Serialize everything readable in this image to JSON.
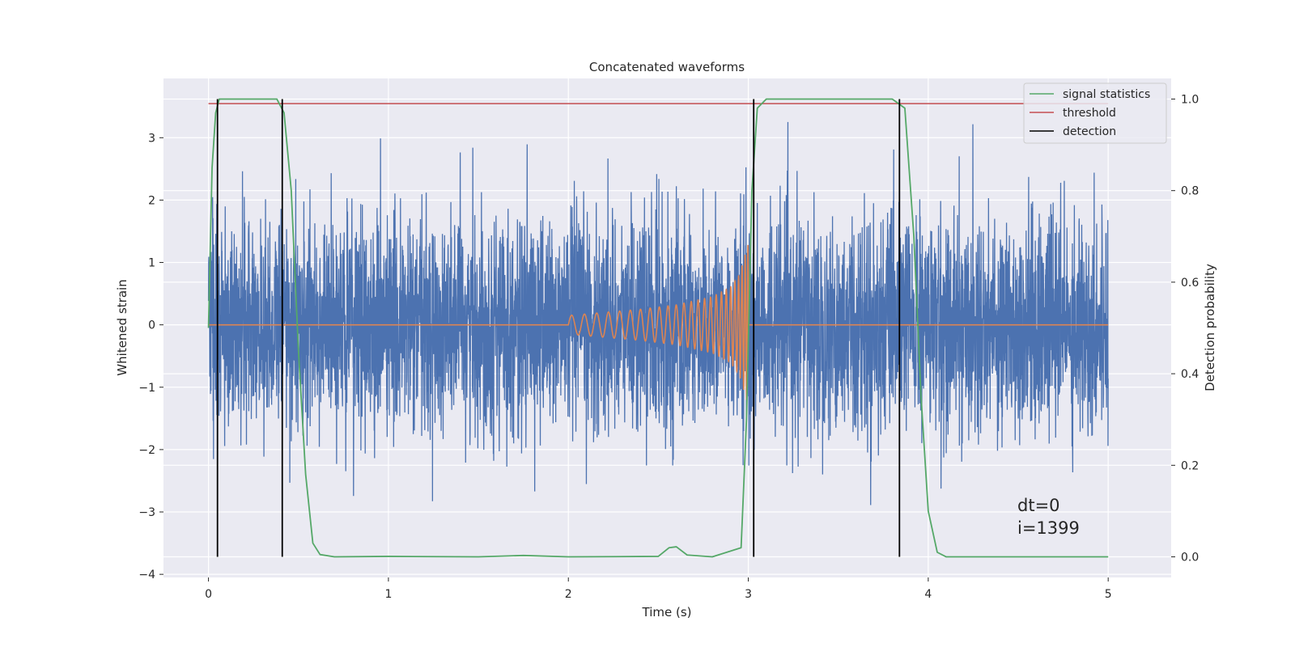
{
  "chart_data": {
    "type": "line",
    "title": "Concatenated waveforms",
    "xlabel": "Time (s)",
    "ylabel": "Whitened strain",
    "ylabel_right": "Detection probability",
    "xlim": [
      -0.25,
      5.35
    ],
    "ylim": [
      -4.05,
      3.95
    ],
    "ylim_right": [
      -0.045,
      1.045
    ],
    "x_ticks": [
      0,
      1,
      2,
      3,
      4,
      5
    ],
    "y_ticks": [
      -4,
      -3,
      -2,
      -1,
      0,
      1,
      2,
      3
    ],
    "y_ticks_right": [
      0.0,
      0.2,
      0.4,
      0.6,
      0.8,
      1.0
    ],
    "x_tick_labels": [
      "0",
      "1",
      "2",
      "3",
      "4",
      "5"
    ],
    "y_tick_labels": [
      "−4",
      "−3",
      "−2",
      "−1",
      "0",
      "1",
      "2",
      "3"
    ],
    "y_tick_labels_right": [
      "0.0",
      "0.2",
      "0.4",
      "0.6",
      "0.8",
      "1.0"
    ],
    "grid": true,
    "legend_position": "top-right",
    "colors": {
      "background": "#eaeaf2",
      "strain": "#4c72b0",
      "waveform": "#dd8452",
      "signal_statistics": "#55a868",
      "threshold": "#c44e52",
      "detection": "#000000"
    },
    "series": [
      {
        "name": "",
        "role": "whitened strain noise",
        "axis": "left",
        "x_range": [
          0,
          5
        ],
        "std": 0.85,
        "approx_min": -3.7,
        "approx_max": 3.6
      },
      {
        "name": "",
        "role": "injected chirp waveform",
        "axis": "left",
        "x": [
          2.0,
          2.2,
          2.4,
          2.6,
          2.8,
          2.9,
          2.95,
          3.0
        ],
        "envelope": [
          0.15,
          0.2,
          0.25,
          0.32,
          0.45,
          0.6,
          0.8,
          1.3
        ]
      },
      {
        "name": "signal statistics",
        "axis": "right",
        "x": [
          0,
          0.02,
          0.04,
          0.06,
          0.1,
          0.2,
          0.38,
          0.42,
          0.46,
          0.5,
          0.54,
          0.58,
          0.62,
          0.7,
          1.0,
          1.5,
          1.75,
          2.0,
          2.5,
          2.56,
          2.6,
          2.66,
          2.8,
          2.96,
          2.99,
          3.02,
          3.05,
          3.1,
          3.5,
          3.8,
          3.87,
          3.92,
          3.96,
          4.0,
          4.05,
          4.1,
          4.5,
          5.0
        ],
        "values": [
          0.5,
          0.85,
          0.97,
          1.0,
          1.0,
          1.0,
          1.0,
          0.97,
          0.8,
          0.45,
          0.18,
          0.03,
          0.005,
          0.0,
          0.001,
          0.0,
          0.003,
          0.0,
          0.001,
          0.02,
          0.022,
          0.004,
          0.0,
          0.02,
          0.3,
          0.8,
          0.98,
          1.0,
          1.0,
          1.0,
          0.98,
          0.7,
          0.35,
          0.1,
          0.01,
          0.0,
          0.0,
          0.0
        ]
      },
      {
        "name": "threshold",
        "axis": "right",
        "x": [
          0,
          5
        ],
        "values": [
          0.99,
          0.99
        ]
      },
      {
        "name": "detection",
        "axis": "right",
        "x": [
          0.05,
          0.41,
          3.03,
          3.84
        ],
        "range": [
          0.0,
          1.0
        ]
      }
    ],
    "annotations": [
      "dt=0",
      "i=1399"
    ]
  }
}
